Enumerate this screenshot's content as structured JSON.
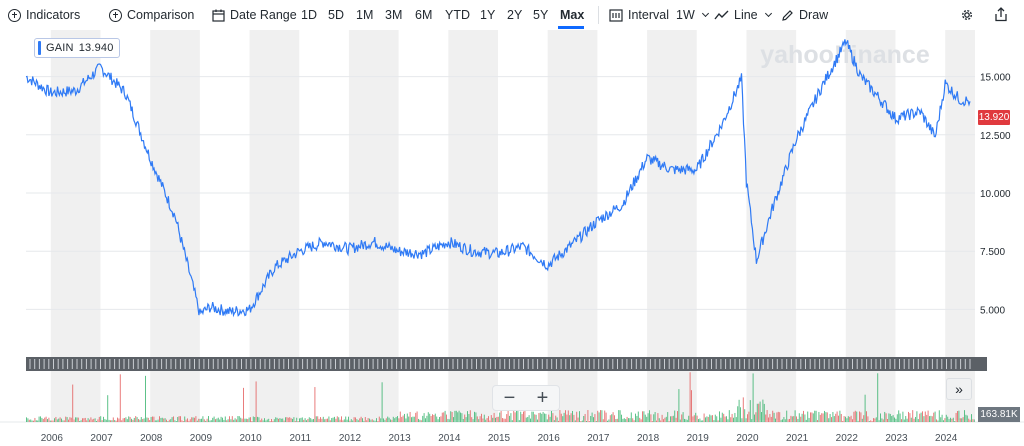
{
  "toolbar": {
    "indicators": "Indicators",
    "comparison": "Comparison",
    "date_range": "Date Range",
    "ranges": [
      "1D",
      "5D",
      "1M",
      "3M",
      "6M",
      "YTD",
      "1Y",
      "2Y",
      "5Y",
      "Max"
    ],
    "active_range": "Max",
    "interval_label": "Interval",
    "interval_value": "1W",
    "chart_type": "Line",
    "draw": "Draw",
    "icons": [
      "plus-circle-icon",
      "calendar-icon",
      "interval-icon",
      "line-chart-icon",
      "pencil-icon",
      "gear-icon",
      "share-icon"
    ]
  },
  "chart_header": {
    "ticker": "GAIN",
    "value": "13.940"
  },
  "watermark": "yahoo!finance",
  "price_tag": "13.920",
  "volume_tag": "163.81K",
  "zoom": {
    "minus": "−",
    "plus": "+"
  },
  "expand_label": "»",
  "colors": {
    "line": "#2f7af5",
    "accent": "#0f69ff",
    "price_tag": "#e03a3e",
    "up_volume": "#35b36b",
    "down_volume": "#e45b5b",
    "band": "#f0f0f0"
  },
  "chart_data": {
    "type": "line",
    "series": [
      {
        "name": "GAIN",
        "x": [
          2005.5,
          2006.0,
          2006.5,
          2007.0,
          2007.5,
          2008.0,
          2008.5,
          2008.8,
          2009.0,
          2009.2,
          2009.6,
          2010.0,
          2010.5,
          2011.0,
          2011.5,
          2012.0,
          2012.5,
          2013.0,
          2013.5,
          2014.0,
          2014.5,
          2015.0,
          2015.5,
          2016.0,
          2016.5,
          2017.0,
          2017.5,
          2018.0,
          2018.5,
          2019.0,
          2019.5,
          2019.9,
          2020.0,
          2020.2,
          2020.5,
          2021.0,
          2021.5,
          2022.0,
          2022.3,
          2022.7,
          2023.0,
          2023.5,
          2023.8,
          2024.0,
          2024.3,
          2024.5
        ],
        "values": [
          15.0,
          14.3,
          14.4,
          15.4,
          14.3,
          11.5,
          9.0,
          6.5,
          4.8,
          5.1,
          4.9,
          5.0,
          6.8,
          7.5,
          7.9,
          7.6,
          7.9,
          7.5,
          7.4,
          7.9,
          7.5,
          7.4,
          7.7,
          6.9,
          7.8,
          8.8,
          9.5,
          11.5,
          11.0,
          11.0,
          12.9,
          14.9,
          10.5,
          7.1,
          9.2,
          12.3,
          14.5,
          16.5,
          15.0,
          14.0,
          13.2,
          13.5,
          12.4,
          14.7,
          14.0,
          13.94
        ]
      }
    ],
    "x_ticks": [
      "2006",
      "2007",
      "2008",
      "2009",
      "2010",
      "2011",
      "2012",
      "2013",
      "2014",
      "2015",
      "2016",
      "2017",
      "2018",
      "2019",
      "2020",
      "2021",
      "2022",
      "2023",
      "2024"
    ],
    "y_ticks": [
      "5.000",
      "7.500",
      "10.000",
      "12.500",
      "15.000"
    ],
    "xlim": [
      2005.5,
      2024.6
    ],
    "ylim": [
      3.0,
      17.0
    ],
    "legend": "top-left"
  }
}
